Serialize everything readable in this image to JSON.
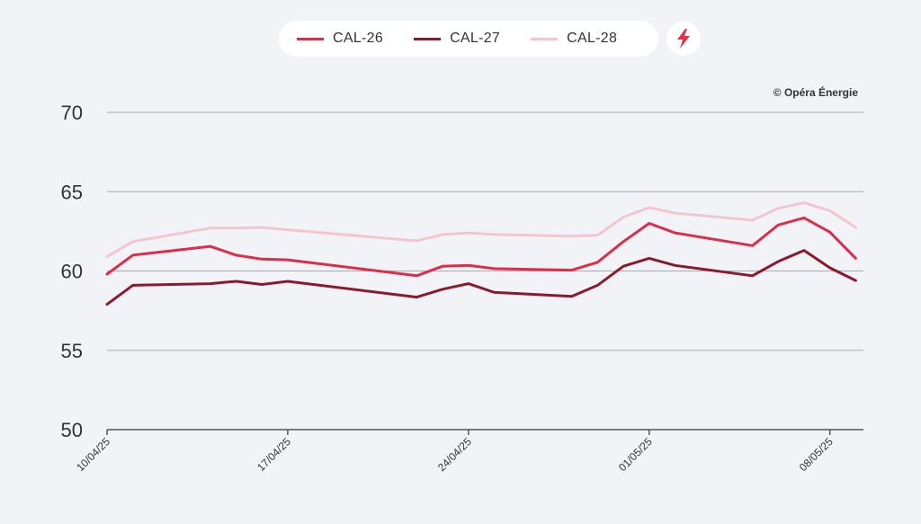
{
  "legend": {
    "items": [
      {
        "label": "CAL-26",
        "color": "#dc2d4b"
      },
      {
        "label": "CAL-27",
        "color": "#8b1a2e"
      },
      {
        "label": "CAL-28",
        "color": "#f2c6cf"
      }
    ],
    "bolt_icon": "lightning-bolt-icon",
    "bolt_color": "#e5304a"
  },
  "copyright": "© Opéra Énergie",
  "chart_data": {
    "type": "line",
    "x": [
      "10/04/25",
      "11/04/25",
      "14/04/25",
      "15/04/25",
      "16/04/25",
      "17/04/25",
      "22/04/25",
      "23/04/25",
      "24/04/25",
      "25/04/25",
      "28/04/25",
      "29/04/25",
      "30/04/25",
      "01/05/25",
      "02/05/25",
      "05/05/25",
      "06/05/25",
      "07/05/25",
      "08/05/25",
      "09/05/25"
    ],
    "x_ticks": [
      "10/04/25",
      "17/04/25",
      "24/04/25",
      "01/05/25",
      "08/05/25"
    ],
    "series": [
      {
        "name": "CAL-26",
        "color": "#dc2d4b",
        "values": [
          59.8,
          61.0,
          61.55,
          61.0,
          60.75,
          60.7,
          59.7,
          60.3,
          60.35,
          60.15,
          60.05,
          60.55,
          61.85,
          63.0,
          62.4,
          61.6,
          62.9,
          63.35,
          62.45,
          60.8
        ]
      },
      {
        "name": "CAL-27",
        "color": "#8b1a2e",
        "values": [
          57.9,
          59.1,
          59.2,
          59.35,
          59.15,
          59.35,
          58.35,
          58.85,
          59.2,
          58.65,
          58.4,
          59.1,
          60.3,
          60.8,
          60.35,
          59.7,
          60.6,
          61.3,
          60.2,
          59.4
        ]
      },
      {
        "name": "CAL-28",
        "color": "#f2c6cf",
        "values": [
          60.9,
          61.85,
          62.7,
          62.7,
          62.75,
          62.6,
          61.9,
          62.3,
          62.4,
          62.3,
          62.2,
          62.25,
          63.4,
          64.0,
          63.65,
          63.2,
          63.95,
          64.3,
          63.8,
          62.75
        ]
      }
    ],
    "ylim": [
      50,
      70
    ],
    "yticks": [
      50,
      55,
      60,
      65,
      70
    ],
    "grid": true,
    "legend_position": "top-center"
  }
}
